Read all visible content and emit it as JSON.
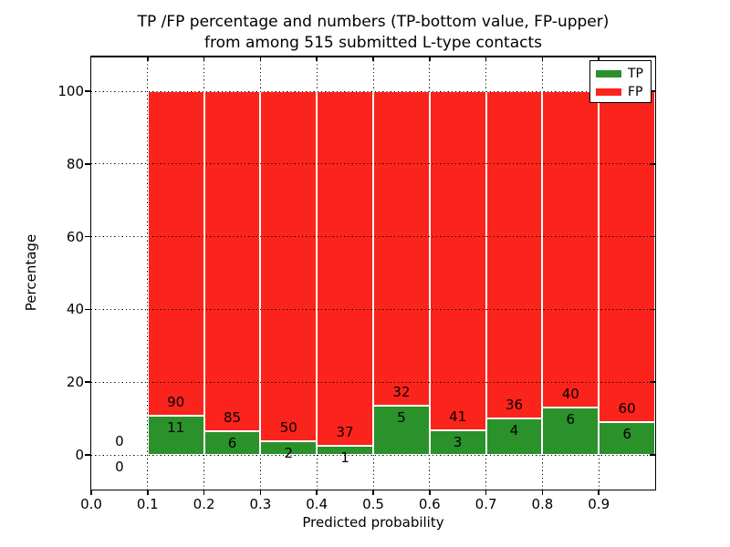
{
  "title": {
    "line1": "TP /FP percentage and numbers (TP-bottom value, FP-upper)",
    "line2": "from among 515 submitted L-type contacts"
  },
  "axes": {
    "ylabel": "Percentage",
    "xlabel": "Predicted probability",
    "y_ticks": [
      "0",
      "20",
      "40",
      "60",
      "80",
      "100"
    ],
    "x_ticks": [
      "0.0",
      "0.1",
      "0.2",
      "0.3",
      "0.4",
      "0.5",
      "0.6",
      "0.7",
      "0.8",
      "0.9"
    ]
  },
  "legend": [
    {
      "label": "TP",
      "color": "#2b912b"
    },
    {
      "label": "FP",
      "color": "#fb241c"
    }
  ],
  "colors": {
    "tp": "#2b912b",
    "fp": "#fb241c",
    "bar_edge": "#ffffff",
    "text": "#000000",
    "background": "#ffffff"
  },
  "chart_data": {
    "type": "bar",
    "stacked": true,
    "normalized_to_percent": true,
    "title": "TP /FP percentage and numbers (TP-bottom value, FP-upper)\nfrom among 515 submitted L-type contacts",
    "xlabel": "Predicted probability",
    "ylabel": "Percentage",
    "xlim": [
      0.0,
      1.0
    ],
    "ylim": [
      -10,
      110
    ],
    "grid": true,
    "grid_style": "dotted",
    "legend_position": "upper right",
    "total_submitted": 515,
    "bin_left": [
      0.0,
      0.1,
      0.2,
      0.3,
      0.4,
      0.5,
      0.6,
      0.7,
      0.8,
      0.9
    ],
    "bar_width": 0.1,
    "categories": [
      "0.0-0.1",
      "0.1-0.2",
      "0.2-0.3",
      "0.3-0.4",
      "0.4-0.5",
      "0.5-0.6",
      "0.6-0.7",
      "0.7-0.8",
      "0.8-0.9",
      "0.9-1.0"
    ],
    "series": [
      {
        "name": "TP",
        "counts": [
          0,
          11,
          6,
          2,
          1,
          5,
          3,
          4,
          6,
          6
        ],
        "pct": [
          0,
          10.89,
          6.59,
          3.85,
          2.63,
          13.51,
          6.82,
          10.0,
          13.04,
          9.09
        ]
      },
      {
        "name": "FP",
        "counts": [
          0,
          90,
          85,
          50,
          37,
          32,
          41,
          36,
          40,
          60
        ],
        "pct": [
          0,
          89.11,
          93.41,
          96.15,
          97.37,
          86.49,
          93.18,
          90.0,
          86.96,
          90.91
        ]
      }
    ]
  }
}
